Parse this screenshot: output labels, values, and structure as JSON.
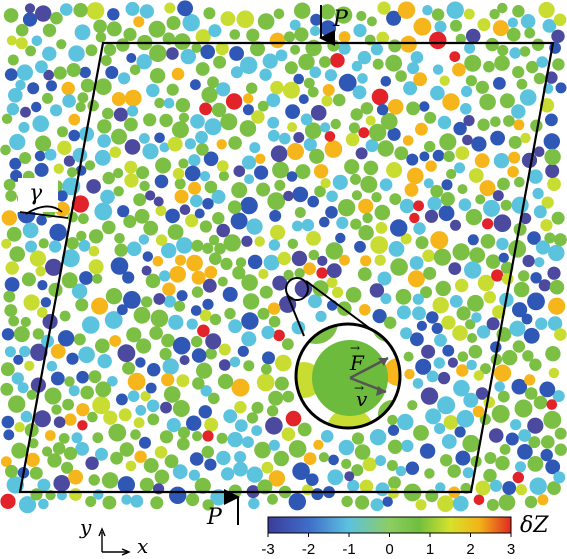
{
  "labels": {
    "pressure_top": "P",
    "pressure_bottom": "P",
    "shear_angle": "γ",
    "force_vector": "F",
    "velocity_vector": "v",
    "axis_y": "y",
    "axis_x": "x",
    "colorbar_label": "δZ"
  },
  "colorbar": {
    "ticks": [
      "-3",
      "-2",
      "-1",
      "0",
      "1",
      "2",
      "3"
    ],
    "min": -3,
    "max": 3,
    "colors": [
      "#3b3c9a",
      "#3f6ec9",
      "#5cc1e0",
      "#8dcd62",
      "#6fbf3f",
      "#d6e22c",
      "#f3b318",
      "#e02a22"
    ]
  },
  "colors": {
    "cell_outline": "#000000",
    "particle_palette": {
      "-3": "#4b4a9e",
      "-2": "#2f57b5",
      "-1": "#5bc3de",
      "0": "#7cbf45",
      "1": "#c8dc32",
      "2": "#f6b51b",
      "3": "#e2242a"
    },
    "zoom_particle": "#6dbb3c"
  }
}
